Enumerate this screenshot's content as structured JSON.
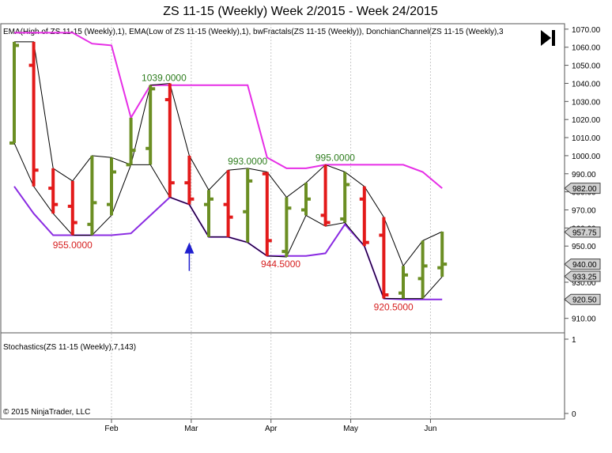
{
  "chart_data": {
    "type": "ohlc",
    "title": "ZS 11-15 (Weekly)  Week 2/2015 - Week 24/2015",
    "indicator_label": "EMA(High of ZS 11-15 (Weekly),1), EMA(Low of ZS 11-15 (Weekly),1), bwFractals(ZS 11-15 (Weekly)), DonchianChannel(ZS 11-15 (Weekly),3",
    "lower_panel_label": "Stochastics(ZS 11-15 (Weekly),7,143)",
    "copyright": "© 2015 NinjaTrader, LLC",
    "ylim": [
      902,
      1073
    ],
    "y_ticks": [
      910,
      920,
      930,
      940,
      950,
      960,
      970,
      980,
      990,
      1000,
      1010,
      1020,
      1030,
      1040,
      1050,
      1060,
      1070
    ],
    "y_tick_labels": [
      "910.00",
      "920.00",
      "930.00",
      "940.00",
      "950.00",
      "960.00",
      "970.00",
      "980.00",
      "990.00",
      "1000.00",
      "1010.00",
      "1020.00",
      "1030.00",
      "1040.00",
      "1050.00",
      "1060.00",
      "1070.00"
    ],
    "lower_ylim": [
      0,
      1
    ],
    "lower_ticks": [
      0,
      1
    ],
    "lower_tick_labels": [
      "0",
      "1"
    ],
    "x_labels": [
      {
        "label": "Feb",
        "bar": 5
      },
      {
        "label": "Mar",
        "bar": 9.1
      },
      {
        "label": "Apr",
        "bar": 13.2
      },
      {
        "label": "May",
        "bar": 17.3
      },
      {
        "label": "Jun",
        "bar": 21.4
      }
    ],
    "bars": [
      {
        "open": 1007,
        "high": 1063,
        "low": 1007,
        "close": 1061,
        "dir": "up"
      },
      {
        "open": 1050,
        "high": 1063,
        "low": 983,
        "close": 992,
        "dir": "down"
      },
      {
        "open": 982,
        "high": 993,
        "low": 968,
        "close": 973,
        "dir": "down"
      },
      {
        "open": 972,
        "high": 986,
        "low": 956,
        "close": 963,
        "dir": "down"
      },
      {
        "open": 962,
        "high": 1000,
        "low": 956,
        "close": 974,
        "dir": "up"
      },
      {
        "open": 973,
        "high": 999,
        "low": 967,
        "close": 991,
        "dir": "up"
      },
      {
        "open": 995,
        "high": 1021,
        "low": 995,
        "close": 1003,
        "dir": "up"
      },
      {
        "open": 1004,
        "high": 1039,
        "low": 995,
        "close": 1037,
        "dir": "up"
      },
      {
        "open": 1031,
        "high": 1040,
        "low": 977,
        "close": 985,
        "dir": "down"
      },
      {
        "open": 985,
        "high": 1000,
        "low": 973,
        "close": 976,
        "dir": "down"
      },
      {
        "open": 973,
        "high": 981,
        "low": 955,
        "close": 976,
        "dir": "up"
      },
      {
        "open": 973,
        "high": 992,
        "low": 955,
        "close": 966,
        "dir": "down"
      },
      {
        "open": 969,
        "high": 993,
        "low": 952,
        "close": 986,
        "dir": "up"
      },
      {
        "open": 990,
        "high": 991,
        "low": 944.5,
        "close": 953,
        "dir": "down"
      },
      {
        "open": 947,
        "high": 977,
        "low": 944,
        "close": 971,
        "dir": "up"
      },
      {
        "open": 970,
        "high": 985,
        "low": 967,
        "close": 976,
        "dir": "up"
      },
      {
        "open": 967,
        "high": 995,
        "low": 961,
        "close": 963,
        "dir": "down"
      },
      {
        "open": 965,
        "high": 991,
        "low": 963,
        "close": 984,
        "dir": "up"
      },
      {
        "open": 976,
        "high": 983,
        "low": 950,
        "close": 952,
        "dir": "down"
      },
      {
        "open": 956,
        "high": 966,
        "low": 921,
        "close": 923,
        "dir": "down"
      },
      {
        "open": 924,
        "high": 939,
        "low": 921,
        "close": 934,
        "dir": "up"
      },
      {
        "open": 932,
        "high": 953,
        "low": 921,
        "close": 939,
        "dir": "up"
      },
      {
        "open": 938,
        "high": 958,
        "low": 933,
        "close": 940,
        "dir": "up"
      }
    ],
    "donchian_upper": [
      1068,
      1068,
      1068,
      1068,
      1062,
      1061,
      1021,
      1039,
      1039,
      1039,
      1039,
      1039,
      1039,
      999,
      993,
      993,
      995,
      995,
      995,
      995,
      995,
      991,
      982
    ],
    "donchian_lower": [
      983,
      968,
      956,
      956,
      956,
      956,
      957,
      967,
      977,
      973,
      955,
      955,
      952,
      944.5,
      944.5,
      944.5,
      946,
      962,
      950,
      921,
      920.5,
      920.5,
      920.5
    ],
    "fractals_high": [
      1063,
      1063,
      993,
      986,
      1000,
      999,
      995,
      1039,
      1040,
      1000,
      981,
      992,
      993,
      991,
      977,
      985,
      995,
      991,
      983,
      966,
      939,
      953,
      958
    ],
    "fractals_low": [
      1007,
      983,
      968,
      956,
      956,
      967,
      995,
      995,
      977,
      973,
      955,
      955,
      952,
      944.5,
      944,
      967,
      961,
      963,
      950,
      921,
      921,
      921,
      933
    ],
    "annotations": [
      {
        "text": "1039.0000",
        "bar": 7.7,
        "price": 1039,
        "pos": "above",
        "color": "#2e7d1e"
      },
      {
        "text": "955.0000",
        "bar": 3,
        "price": 955,
        "pos": "below",
        "color": "#d62020"
      },
      {
        "text": "993.0000",
        "bar": 12,
        "price": 993,
        "pos": "above",
        "color": "#2e7d1e"
      },
      {
        "text": "944.5000",
        "bar": 13.7,
        "price": 944.5,
        "pos": "below",
        "color": "#d62020"
      },
      {
        "text": "995.0000",
        "bar": 16.5,
        "price": 995,
        "pos": "above",
        "color": "#2e7d1e"
      },
      {
        "text": "920.5000",
        "bar": 19.5,
        "price": 920.5,
        "pos": "below",
        "color": "#d62020"
      }
    ],
    "arrow": {
      "bar": 9,
      "price": 952,
      "direction": "up",
      "color": "#1f1fcf"
    },
    "right_markers": [
      {
        "label": "982.00",
        "price": 982
      },
      {
        "label": "957.75",
        "price": 957.75
      },
      {
        "label": "940.00",
        "price": 940
      },
      {
        "label": "933.25",
        "price": 933.25
      },
      {
        "label": "920.50",
        "price": 920.5
      }
    ],
    "colors": {
      "up": "#6b8e23",
      "down": "#e31a1a",
      "donchian_upper": "#e62ee6",
      "donchian_lower": "#8a2be2",
      "fractal_line": "#000000"
    }
  }
}
